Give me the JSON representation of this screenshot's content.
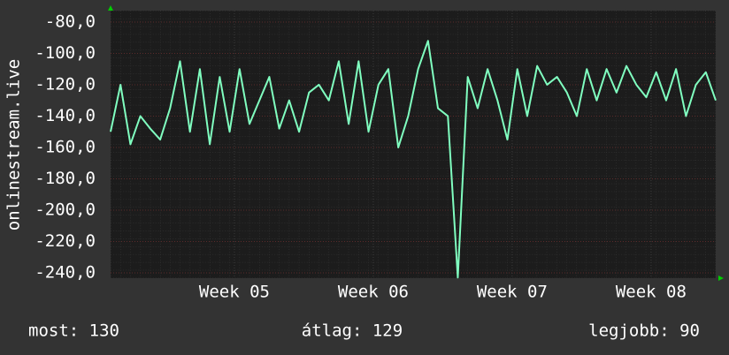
{
  "chart_data": {
    "type": "line",
    "y_label": "onlinestream.live",
    "x": [
      0,
      0.5,
      1,
      1.5,
      2,
      2.5,
      3,
      3.5,
      4,
      4.5,
      5,
      5.5,
      6,
      6.5,
      7,
      7.5,
      8,
      8.5,
      9,
      9.5,
      10,
      10.5,
      11,
      11.5,
      12,
      12.5,
      13,
      13.5,
      14,
      14.5,
      15,
      15.5,
      16,
      16.5,
      17,
      17.5,
      18,
      18.5,
      19,
      19.5,
      20,
      20.5,
      21,
      21.5,
      22,
      22.5,
      23,
      23.5,
      24,
      24.5,
      25,
      25.5,
      26,
      26.5,
      27,
      27.5,
      28,
      28.5,
      29,
      29.5,
      30,
      30.5
    ],
    "series": [
      {
        "color": "#80ffc0",
        "values": [
          -150,
          -120,
          -158,
          -140,
          -148,
          -155,
          -135,
          -105,
          -150,
          -110,
          -158,
          -115,
          -150,
          -110,
          -145,
          -130,
          -115,
          -148,
          -130,
          -150,
          -125,
          -120,
          -130,
          -105,
          -145,
          -105,
          -150,
          -120,
          -110,
          -160,
          -140,
          -110,
          -92,
          -135,
          -140,
          -243,
          -115,
          -135,
          -110,
          -130,
          -155,
          -110,
          -140,
          -108,
          -120,
          -115,
          -125,
          -140,
          -110,
          -130,
          -110,
          -125,
          -108,
          -120,
          -128,
          -112,
          -130,
          -110,
          -140,
          -120,
          -112,
          -130
        ]
      }
    ],
    "xlim": [
      0,
      30.5
    ],
    "xticks": [
      {
        "value": 6.24,
        "label": "Week 05"
      },
      {
        "value": 13.24,
        "label": "Week 06"
      },
      {
        "value": 20.24,
        "label": "Week 07"
      },
      {
        "value": 27.24,
        "label": "Week 08"
      }
    ],
    "ylim": [
      -243.4,
      -72.7
    ],
    "yticks": [
      {
        "value": -80,
        "label": "-80,0"
      },
      {
        "value": -100,
        "label": "-100,0"
      },
      {
        "value": -120,
        "label": "-120,0"
      },
      {
        "value": -140,
        "label": "-140,0"
      },
      {
        "value": -160,
        "label": "-160,0"
      },
      {
        "value": -180,
        "label": "-180,0"
      },
      {
        "value": -200,
        "label": "-200,0"
      },
      {
        "value": -220,
        "label": "-220,0"
      },
      {
        "value": -240,
        "label": "-240,0"
      }
    ],
    "grid": true,
    "footer": [
      "most: 130",
      "átlag: 129",
      "legjobb: 90"
    ]
  }
}
